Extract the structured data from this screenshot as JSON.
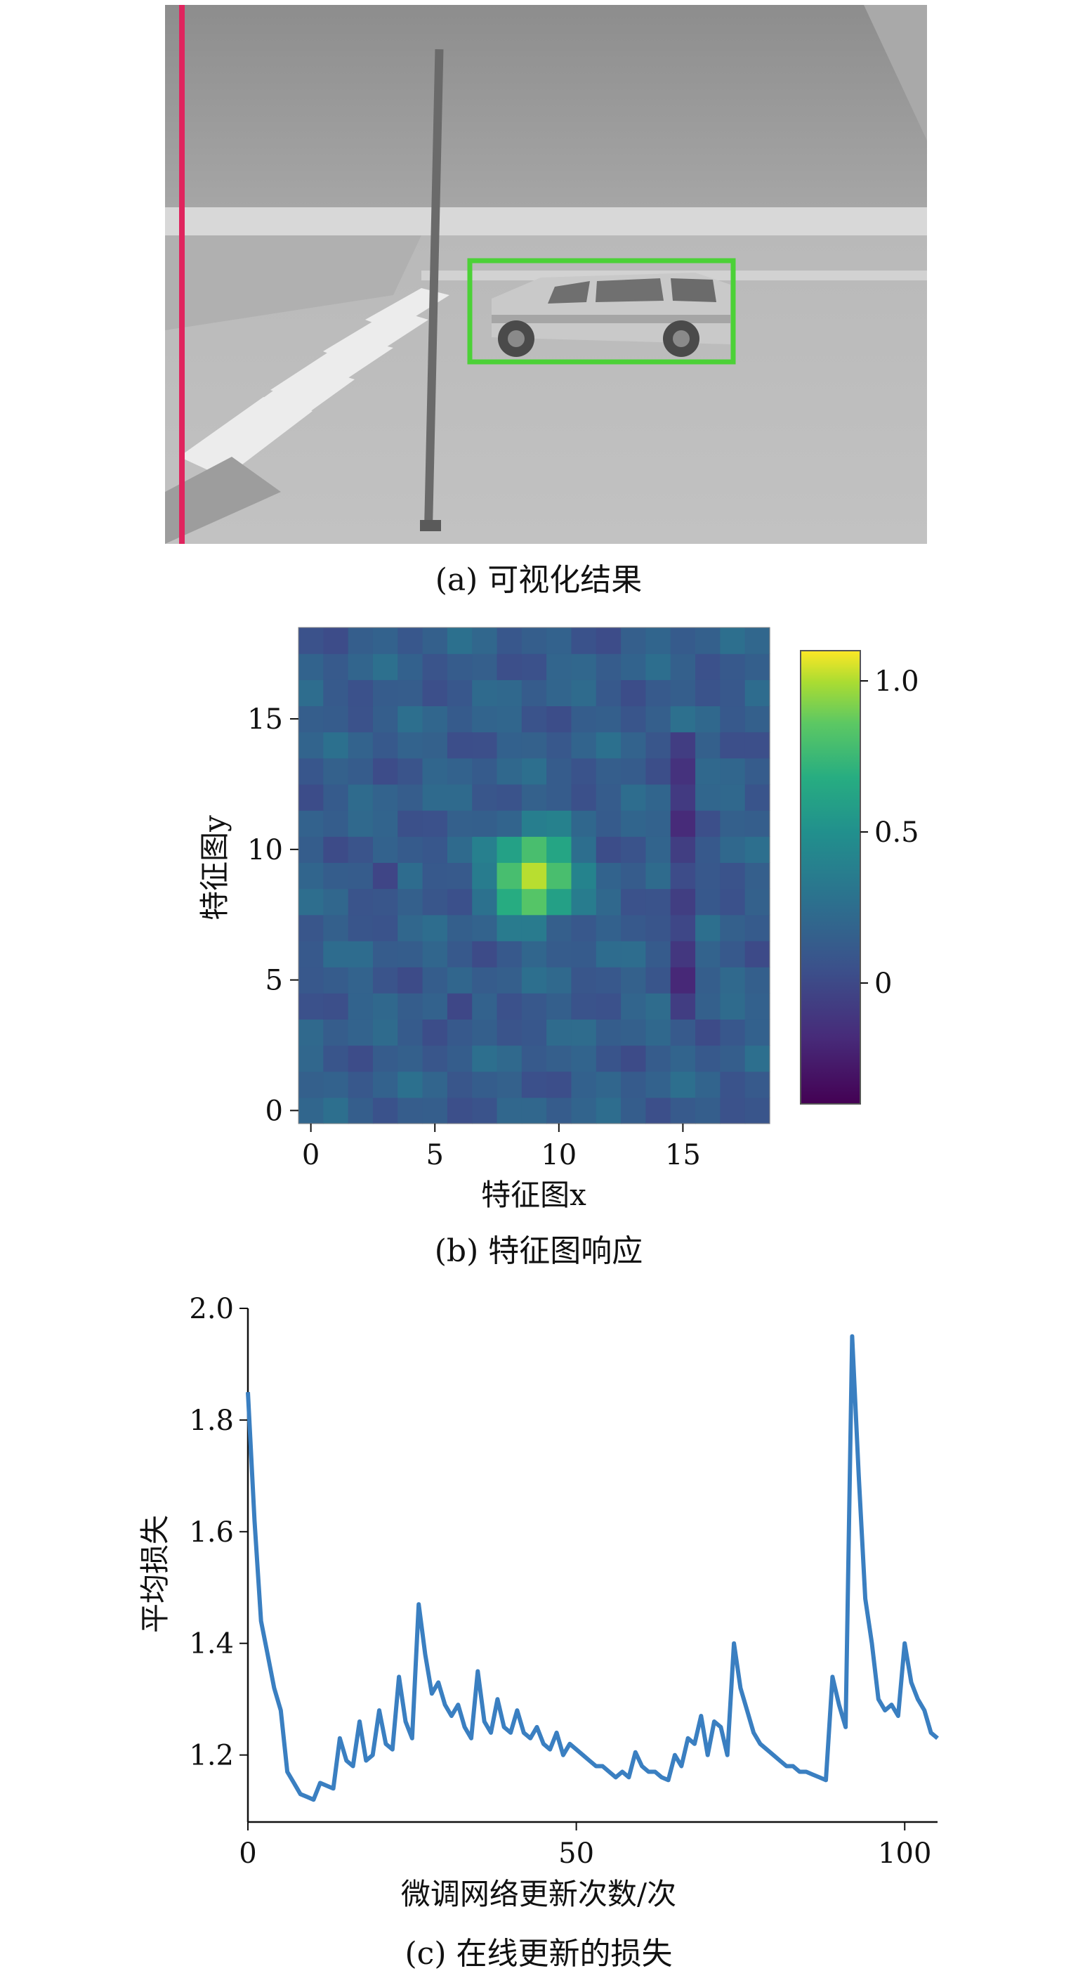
{
  "panel_a": {
    "caption": "(a) 可视化结果",
    "overlay_colors": {
      "line": "#e0245e",
      "box": "#4cd137"
    }
  },
  "panel_b": {
    "caption": "(b) 特征图响应"
  },
  "panel_c": {
    "caption": "(c) 在线更新的损失"
  },
  "chart_data": [
    {
      "type": "heatmap",
      "xlabel": "特征图x",
      "ylabel": "特征图y",
      "xticks": [
        0,
        5,
        10,
        15
      ],
      "yticks": [
        0,
        5,
        10,
        15
      ],
      "xlim": [
        -0.5,
        18.5
      ],
      "ylim": [
        -0.5,
        18.5
      ],
      "colormap": "viridis",
      "colorbar": {
        "ticks": [
          0,
          0.5,
          1.0
        ],
        "tick_labels": [
          "0",
          "0.5",
          "1.0"
        ],
        "range": [
          -0.4,
          1.1
        ]
      },
      "peak": {
        "x": 9,
        "y": 9,
        "value": 1.0
      }
    },
    {
      "type": "line",
      "xlabel": "微调网络更新次数/次",
      "ylabel": "平均损失",
      "xlim": [
        0,
        105
      ],
      "ylim": [
        1.08,
        2.0
      ],
      "xticks": [
        0,
        50,
        100
      ],
      "yticks": [
        1.2,
        1.4,
        1.6,
        1.8,
        2.0
      ],
      "ytick_labels": [
        "1.2",
        "1.4",
        "1.6",
        "1.8",
        "2.0"
      ],
      "line_color": "#3a7fc1",
      "series": [
        {
          "x": [
            0,
            1,
            2,
            3,
            4,
            5,
            6,
            7,
            8,
            9,
            10,
            11,
            12,
            13,
            14,
            15,
            16,
            17,
            18,
            19,
            20,
            21,
            22,
            23,
            24,
            25,
            26,
            27,
            28,
            29,
            30,
            31,
            32,
            33,
            34,
            35,
            36,
            37,
            38,
            39,
            40,
            41,
            42,
            43,
            44,
            45,
            46,
            47,
            48,
            49,
            50,
            51,
            52,
            53,
            54,
            55,
            56,
            57,
            58,
            59,
            60,
            61,
            62,
            63,
            64,
            65,
            66,
            67,
            68,
            69,
            70,
            71,
            72,
            73,
            74,
            75,
            76,
            77,
            78,
            79,
            80,
            81,
            82,
            83,
            84,
            85,
            86,
            87,
            88,
            89,
            90,
            91,
            92,
            93,
            94,
            95,
            96,
            97,
            98,
            99,
            100,
            101,
            102,
            103,
            104,
            105
          ],
          "y": [
            1.85,
            1.62,
            1.44,
            1.38,
            1.32,
            1.28,
            1.17,
            1.15,
            1.13,
            1.125,
            1.12,
            1.15,
            1.145,
            1.14,
            1.23,
            1.19,
            1.18,
            1.26,
            1.19,
            1.2,
            1.28,
            1.22,
            1.21,
            1.34,
            1.26,
            1.23,
            1.47,
            1.38,
            1.31,
            1.33,
            1.29,
            1.27,
            1.29,
            1.25,
            1.23,
            1.35,
            1.26,
            1.24,
            1.3,
            1.25,
            1.24,
            1.28,
            1.24,
            1.23,
            1.25,
            1.22,
            1.21,
            1.24,
            1.2,
            1.22,
            1.21,
            1.2,
            1.19,
            1.18,
            1.18,
            1.17,
            1.16,
            1.17,
            1.16,
            1.205,
            1.18,
            1.17,
            1.17,
            1.16,
            1.155,
            1.2,
            1.18,
            1.23,
            1.22,
            1.27,
            1.2,
            1.26,
            1.25,
            1.2,
            1.4,
            1.32,
            1.28,
            1.24,
            1.22,
            1.21,
            1.2,
            1.19,
            1.18,
            1.18,
            1.17,
            1.17,
            1.165,
            1.16,
            1.155,
            1.34,
            1.29,
            1.25,
            1.95,
            1.7,
            1.48,
            1.4,
            1.3,
            1.28,
            1.29,
            1.27,
            1.4,
            1.33,
            1.3,
            1.28,
            1.24,
            1.23
          ]
        }
      ]
    }
  ]
}
